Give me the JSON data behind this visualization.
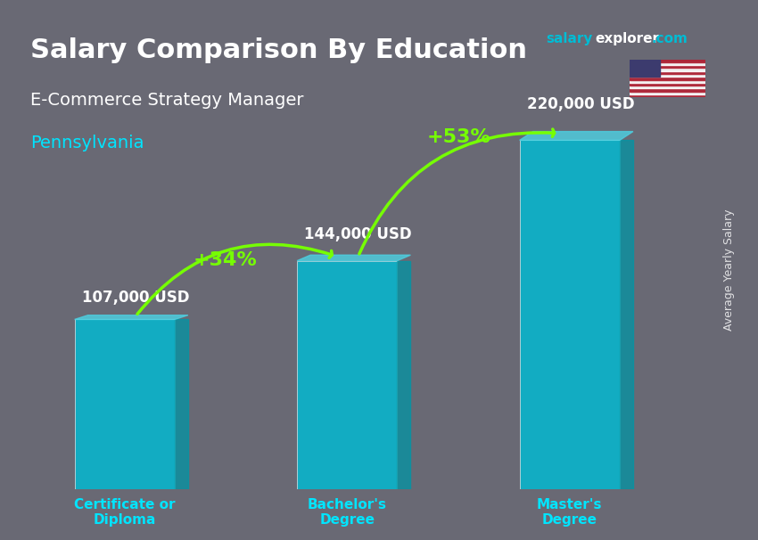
{
  "title_main": "Salary Comparison By Education",
  "title_sub1": "E-Commerce Strategy Manager",
  "title_sub2": "Pennsylvania",
  "categories": [
    "Certificate or\nDiploma",
    "Bachelor's\nDegree",
    "Master's\nDegree"
  ],
  "values": [
    107000,
    144000,
    220000
  ],
  "value_labels": [
    "107,000 USD",
    "144,000 USD",
    "220,000 USD"
  ],
  "bar_color": "#00bcd4",
  "bar_color_dark": "#0097a7",
  "bar_alpha": 0.82,
  "pct_labels": [
    "+34%",
    "+53%"
  ],
  "ylabel_right": "Average Yearly Salary",
  "website_salary": "salary",
  "website_explorer": "explorer",
  "website_com": ".com",
  "bg_color": "#2a2a3a",
  "text_color_white": "#ffffff",
  "text_color_cyan": "#00e5ff",
  "text_color_green": "#76ff03",
  "cat_label_color": "#00e5ff",
  "salary_label_color": "#ffffff",
  "title_color": "#ffffff",
  "subtitle1_color": "#ffffff",
  "subtitle2_color": "#00e5ff"
}
